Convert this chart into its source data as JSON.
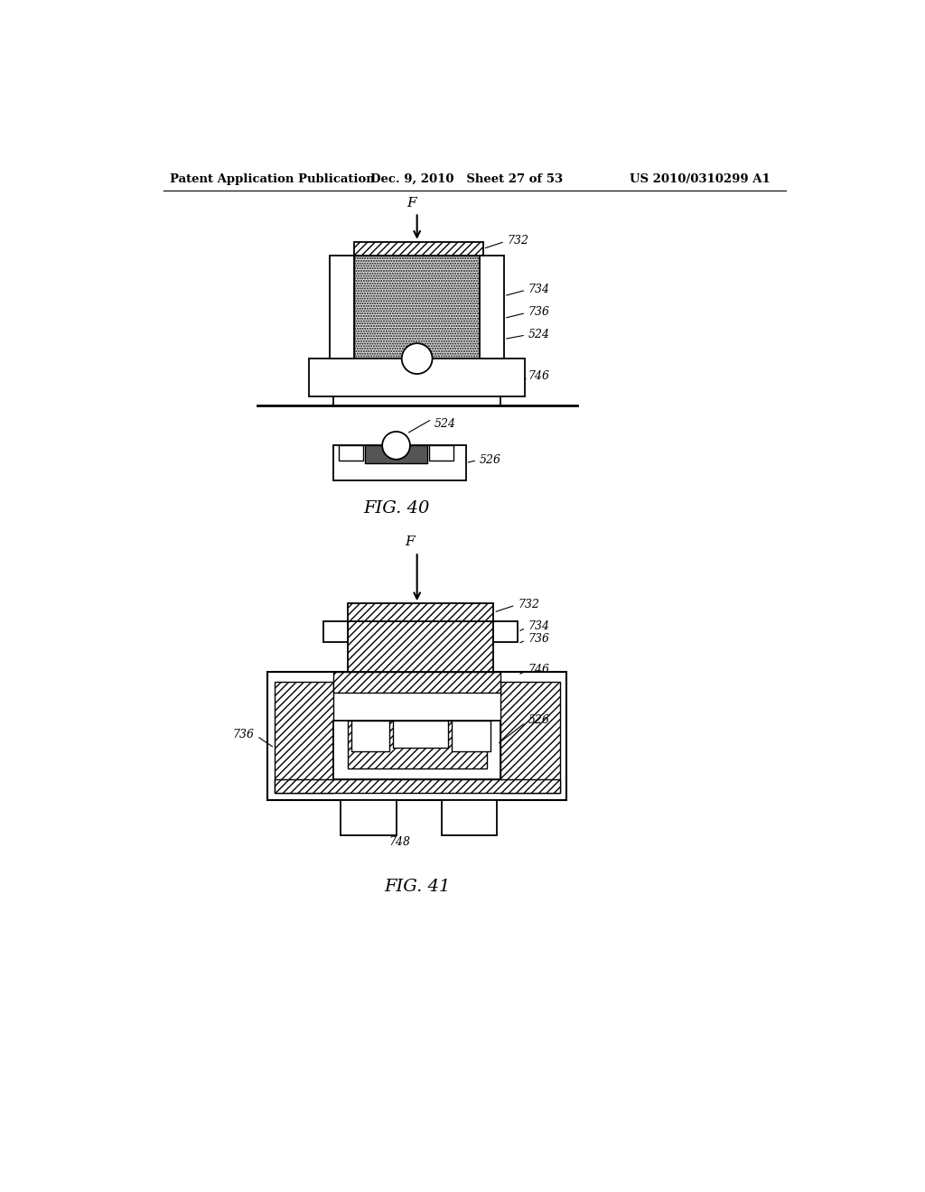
{
  "bg_color": "#ffffff",
  "line_color": "#000000",
  "header_left": "Patent Application Publication",
  "header_mid": "Dec. 9, 2010   Sheet 27 of 53",
  "header_right": "US 2010/0310299 A1",
  "fig40_caption": "FIG. 40",
  "fig41_caption": "FIG. 41"
}
